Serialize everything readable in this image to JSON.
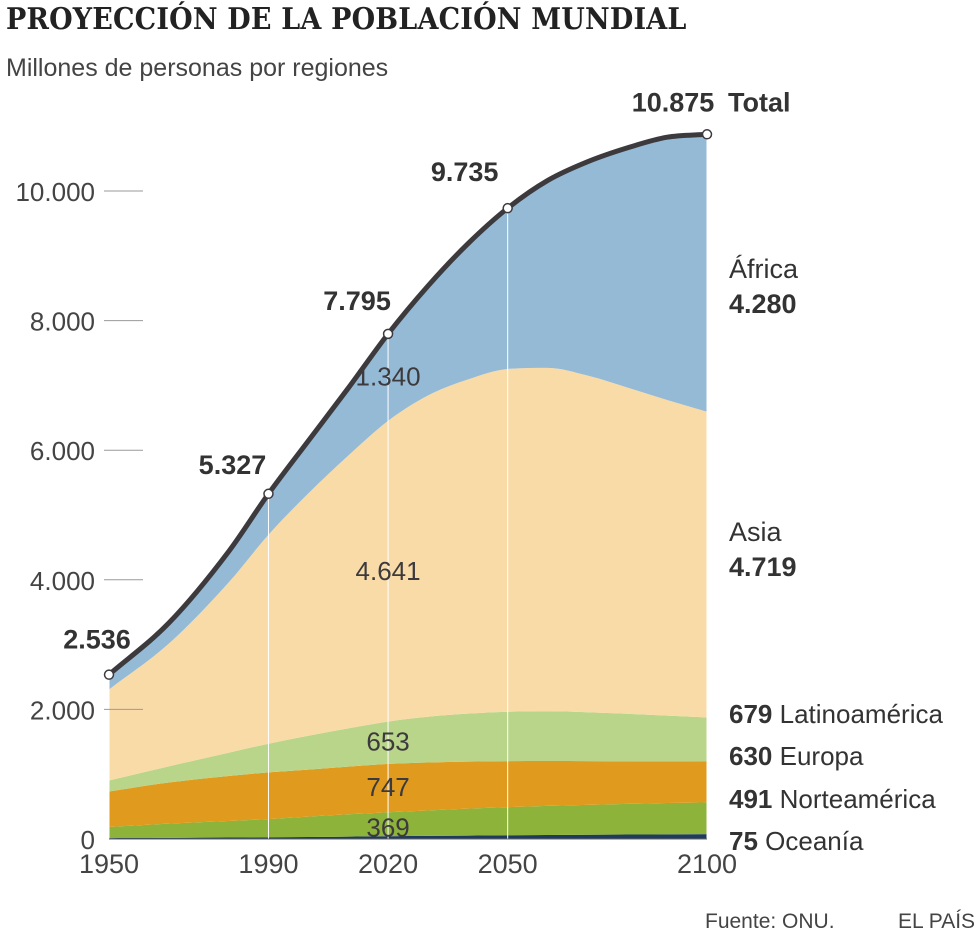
{
  "chart_data": {
    "type": "area",
    "title": "PROYECCIÓN DE LA POBLACIÓN MUNDIAL",
    "subtitle": "Millones de personas por regiones",
    "x_ticks": [
      1950,
      1990,
      2020,
      2050,
      2100
    ],
    "y_ticks": [
      {
        "value": 0,
        "label": "0"
      },
      {
        "value": 2000,
        "label": "2.000"
      },
      {
        "value": 4000,
        "label": "4.000"
      },
      {
        "value": 6000,
        "label": "6.000"
      },
      {
        "value": 8000,
        "label": "8.000"
      },
      {
        "value": 10000,
        "label": "10.000"
      }
    ],
    "ylim": [
      0,
      11000
    ],
    "xlim": [
      1950,
      2100
    ],
    "x": [
      1950,
      1965,
      1980,
      1990,
      2000,
      2010,
      2020,
      2030,
      2040,
      2050,
      2060,
      2070,
      2080,
      2090,
      2100
    ],
    "series": [
      {
        "name": "Oceanía",
        "color": "#1e3a5f",
        "values": [
          13,
          18,
          23,
          27,
          31,
          37,
          43,
          48,
          53,
          57,
          61,
          65,
          69,
          72,
          75
        ]
      },
      {
        "name": "Norteamérica",
        "color": "#8db33a",
        "values": [
          172,
          219,
          255,
          280,
          314,
          344,
          369,
          392,
          415,
          435,
          450,
          462,
          473,
          483,
          491
        ]
      },
      {
        "name": "Europa",
        "color": "#e09b1e",
        "values": [
          549,
          634,
          694,
          721,
          726,
          736,
          747,
          741,
          726,
          710,
          693,
          675,
          657,
          643,
          630
        ]
      },
      {
        "name": "Latinoamérica",
        "color": "#b8d58a",
        "values": [
          169,
          250,
          360,
          442,
          522,
          590,
          653,
          705,
          740,
          762,
          767,
          755,
          733,
          706,
          679
        ]
      },
      {
        "name": "Asia",
        "color": "#f9dba8",
        "values": [
          1405,
          1894,
          2626,
          3225,
          3741,
          4210,
          4641,
          4958,
          5158,
          5290,
          5300,
          5196,
          5036,
          4871,
          4719
        ]
      },
      {
        "name": "África",
        "color": "#95bad6",
        "values": [
          228,
          318,
          477,
          632,
          810,
          1040,
          1340,
          1690,
          2093,
          2481,
          2890,
          3297,
          3697,
          4055,
          4280
        ]
      }
    ],
    "total": {
      "name": "Total",
      "color": "#3d3a3d",
      "values": [
        2536,
        3333,
        4435,
        5327,
        6144,
        6957,
        7795,
        8534,
        9185,
        9735,
        10161,
        10450,
        10665,
        10830,
        10875
      ]
    },
    "total_markers": [
      {
        "x": 1950,
        "value": 2536,
        "label": "2.536"
      },
      {
        "x": 1990,
        "value": 5327,
        "label": "5.327"
      },
      {
        "x": 2020,
        "value": 7795,
        "label": "7.795"
      },
      {
        "x": 2050,
        "value": 9735,
        "label": "9.735"
      },
      {
        "x": 2100,
        "value": 10875,
        "label": "10.875"
      }
    ],
    "total_end_label": "Total",
    "inner_labels": [
      {
        "series": "África",
        "x": 2020,
        "label": "1.340"
      },
      {
        "series": "Asia",
        "x": 2020,
        "label": "4.641"
      },
      {
        "series": "Latinoamérica",
        "x": 2020,
        "label": "653"
      },
      {
        "series": "Europa",
        "x": 2020,
        "label": "747"
      },
      {
        "series": "Norteamérica",
        "x": 2020,
        "label": "369"
      }
    ],
    "end_labels": [
      {
        "name": "África",
        "value": "4.280",
        "layout": "stacked"
      },
      {
        "name": "Asia",
        "value": "4.719",
        "layout": "stacked"
      },
      {
        "name": "Latinoamérica",
        "value": "679",
        "layout": "inline"
      },
      {
        "name": "Europa",
        "value": "630",
        "layout": "inline"
      },
      {
        "name": "Norteamérica",
        "value": "491",
        "layout": "inline"
      },
      {
        "name": "Oceanía",
        "value": "75",
        "layout": "inline"
      }
    ]
  },
  "footer": {
    "source": "Fuente: ONU.",
    "brand": "EL PAÍS"
  }
}
